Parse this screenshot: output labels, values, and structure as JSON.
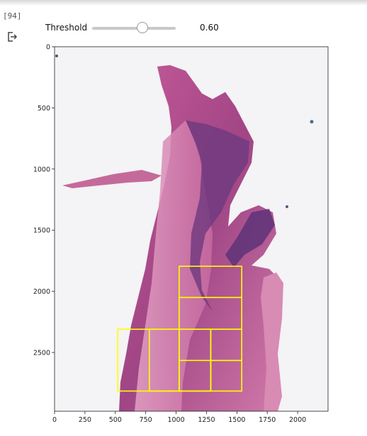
{
  "cell": {
    "execution_count": "[94]",
    "output_icon": "output-arrow-icon"
  },
  "widget": {
    "label": "Threshold",
    "value": 0.6,
    "value_text": "0.60",
    "min": 0,
    "max": 1
  },
  "chart_data": {
    "type": "image",
    "title": "",
    "xlabel": "",
    "ylabel": "",
    "xlim": [
      0,
      2250
    ],
    "ylim": [
      2980,
      0
    ],
    "x_ticks": [
      0,
      250,
      500,
      750,
      1000,
      1250,
      1500,
      1750,
      2000
    ],
    "y_ticks": [
      0,
      500,
      1000,
      1500,
      2000,
      2500
    ],
    "grid": false,
    "boxes": [
      {
        "x0": 1025,
        "y0": 1795,
        "x1": 1540,
        "y1": 2050
      },
      {
        "x0": 1025,
        "y0": 2050,
        "x1": 1540,
        "y1": 2310
      },
      {
        "x0": 520,
        "y0": 2310,
        "x1": 1025,
        "y1": 2815
      },
      {
        "x0": 780,
        "y0": 2310,
        "x1": 1025,
        "y1": 2815
      },
      {
        "x0": 1025,
        "y0": 2310,
        "x1": 1285,
        "y1": 2815
      },
      {
        "x0": 1285,
        "y0": 2310,
        "x1": 1540,
        "y1": 2565
      },
      {
        "x0": 1025,
        "y0": 2565,
        "x1": 1285,
        "y1": 2815
      },
      {
        "x0": 1285,
        "y0": 2565,
        "x1": 1540,
        "y1": 2815
      }
    ],
    "box_color": "#ffff00"
  }
}
